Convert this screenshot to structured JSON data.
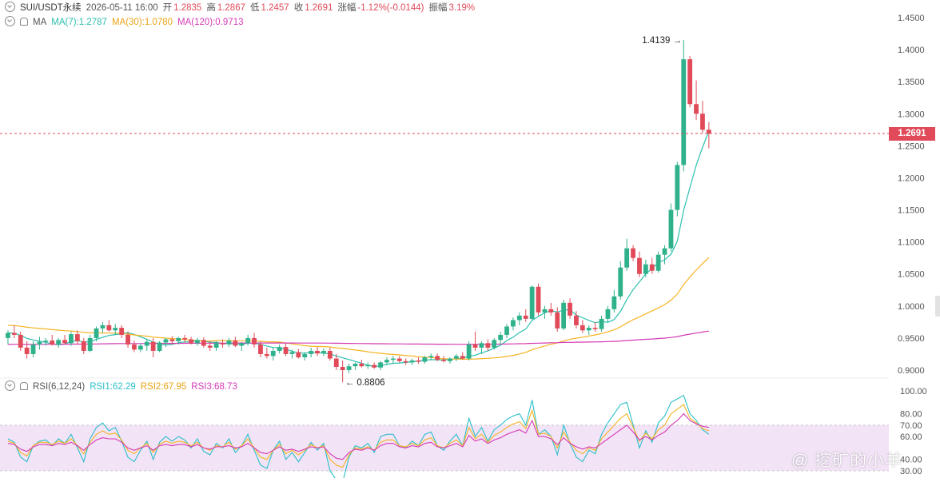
{
  "header": {
    "symbol": "SUI/USDT永续",
    "datetime": "2026-05-11 16:00",
    "open_label": "开",
    "open": "1.2835",
    "high_label": "高",
    "high": "1.2867",
    "low_label": "低",
    "low": "1.2457",
    "close_label": "收",
    "close": "1.2691",
    "change_label": "涨幅",
    "change": "-1.12%(-0.0144)",
    "amp_label": "振幅",
    "amp": "3.19%"
  },
  "ma_legend": {
    "name": "MA",
    "ma7": "MA(7):1.2787",
    "ma30": "MA(30):1.0780",
    "ma120": "MA(120):0.9713"
  },
  "rsi_legend": {
    "name": "RSI(6,12,24)",
    "rsi1": "RSI1:62.29",
    "rsi2": "RSI2:67.95",
    "rsi3": "RSI3:68.73"
  },
  "watermark": "@ 挖矿的小羊",
  "colors": {
    "up": "#2fb18b",
    "down": "#e04a59",
    "ma7": "#2bbfae",
    "ma30": "#f5b321",
    "ma120": "#d43ab4",
    "rsi1": "#2bbfc9",
    "rsi2": "#f5b321",
    "rsi3": "#d43ab4",
    "rsi_band": "#f3e3f7"
  },
  "chart_data": {
    "type": "candlestick",
    "price_axis": {
      "ticks": [
        "1.4500",
        "1.4000",
        "1.3500",
        "1.3000",
        "1.2500",
        "1.2000",
        "1.1500",
        "1.1000",
        "1.0500",
        "1.0000",
        "0.9500",
        "0.9000"
      ],
      "range": [
        0.875,
        1.46
      ]
    },
    "last_price": "1.2691",
    "annotations": {
      "high": "1.4139",
      "low": "0.8806"
    },
    "rsi_axis": {
      "ticks": [
        "100.00",
        "80.00",
        "70.00",
        "60.00",
        "40.00",
        "30.00"
      ],
      "range": [
        30,
        100
      ],
      "overbought": 70,
      "oversold": 30
    },
    "ohlc_notes": "approximate OHLC per bar, read from the chart",
    "ohlc": [
      [
        0.95,
        0.962,
        0.94,
        0.958
      ],
      [
        0.958,
        0.97,
        0.95,
        0.955
      ],
      [
        0.955,
        0.96,
        0.93,
        0.935
      ],
      [
        0.935,
        0.945,
        0.918,
        0.925
      ],
      [
        0.925,
        0.945,
        0.92,
        0.94
      ],
      [
        0.94,
        0.952,
        0.932,
        0.944
      ],
      [
        0.944,
        0.95,
        0.938,
        0.946
      ],
      [
        0.946,
        0.955,
        0.938,
        0.94
      ],
      [
        0.94,
        0.95,
        0.935,
        0.947
      ],
      [
        0.947,
        0.955,
        0.94,
        0.942
      ],
      [
        0.942,
        0.96,
        0.938,
        0.956
      ],
      [
        0.956,
        0.962,
        0.94,
        0.945
      ],
      [
        0.945,
        0.95,
        0.925,
        0.93
      ],
      [
        0.93,
        0.955,
        0.928,
        0.95
      ],
      [
        0.95,
        0.968,
        0.945,
        0.965
      ],
      [
        0.965,
        0.975,
        0.958,
        0.97
      ],
      [
        0.97,
        0.978,
        0.96,
        0.962
      ],
      [
        0.962,
        0.972,
        0.955,
        0.966
      ],
      [
        0.966,
        0.97,
        0.95,
        0.955
      ],
      [
        0.955,
        0.96,
        0.935,
        0.94
      ],
      [
        0.94,
        0.946,
        0.928,
        0.932
      ],
      [
        0.932,
        0.942,
        0.928,
        0.938
      ],
      [
        0.938,
        0.948,
        0.93,
        0.944
      ],
      [
        0.944,
        0.95,
        0.92,
        0.93
      ],
      [
        0.93,
        0.945,
        0.928,
        0.943
      ],
      [
        0.943,
        0.95,
        0.936,
        0.948
      ],
      [
        0.948,
        0.953,
        0.94,
        0.945
      ],
      [
        0.945,
        0.952,
        0.94,
        0.95
      ],
      [
        0.95,
        0.955,
        0.943,
        0.948
      ],
      [
        0.948,
        0.952,
        0.94,
        0.942
      ],
      [
        0.942,
        0.95,
        0.938,
        0.947
      ],
      [
        0.947,
        0.951,
        0.935,
        0.938
      ],
      [
        0.938,
        0.945,
        0.93,
        0.935
      ],
      [
        0.935,
        0.945,
        0.93,
        0.942
      ],
      [
        0.942,
        0.948,
        0.935,
        0.94
      ],
      [
        0.94,
        0.95,
        0.936,
        0.946
      ],
      [
        0.946,
        0.952,
        0.936,
        0.938
      ],
      [
        0.938,
        0.944,
        0.93,
        0.942
      ],
      [
        0.942,
        0.955,
        0.938,
        0.95
      ],
      [
        0.95,
        0.958,
        0.935,
        0.94
      ],
      [
        0.94,
        0.945,
        0.92,
        0.925
      ],
      [
        0.925,
        0.935,
        0.918,
        0.922
      ],
      [
        0.922,
        0.935,
        0.915,
        0.93
      ],
      [
        0.93,
        0.94,
        0.926,
        0.936
      ],
      [
        0.936,
        0.942,
        0.922,
        0.925
      ],
      [
        0.925,
        0.932,
        0.918,
        0.928
      ],
      [
        0.928,
        0.933,
        0.918,
        0.92
      ],
      [
        0.92,
        0.928,
        0.915,
        0.925
      ],
      [
        0.925,
        0.935,
        0.92,
        0.93
      ],
      [
        0.93,
        0.936,
        0.922,
        0.926
      ],
      [
        0.926,
        0.934,
        0.922,
        0.93
      ],
      [
        0.93,
        0.935,
        0.915,
        0.918
      ],
      [
        0.918,
        0.925,
        0.9,
        0.905
      ],
      [
        0.905,
        0.915,
        0.881,
        0.9
      ],
      [
        0.9,
        0.91,
        0.895,
        0.906
      ],
      [
        0.906,
        0.912,
        0.9,
        0.91
      ],
      [
        0.91,
        0.916,
        0.904,
        0.906
      ],
      [
        0.906,
        0.912,
        0.902,
        0.908
      ],
      [
        0.908,
        0.912,
        0.902,
        0.904
      ],
      [
        0.904,
        0.914,
        0.9,
        0.912
      ],
      [
        0.912,
        0.92,
        0.908,
        0.916
      ],
      [
        0.916,
        0.922,
        0.91,
        0.918
      ],
      [
        0.918,
        0.922,
        0.912,
        0.914
      ],
      [
        0.914,
        0.918,
        0.908,
        0.912
      ],
      [
        0.912,
        0.918,
        0.908,
        0.915
      ],
      [
        0.915,
        0.92,
        0.91,
        0.913
      ],
      [
        0.913,
        0.922,
        0.91,
        0.92
      ],
      [
        0.92,
        0.926,
        0.916,
        0.922
      ],
      [
        0.922,
        0.926,
        0.914,
        0.916
      ],
      [
        0.916,
        0.922,
        0.912,
        0.914
      ],
      [
        0.914,
        0.92,
        0.91,
        0.918
      ],
      [
        0.918,
        0.925,
        0.914,
        0.922
      ],
      [
        0.922,
        0.928,
        0.916,
        0.918
      ],
      [
        0.918,
        0.945,
        0.915,
        0.94
      ],
      [
        0.94,
        0.96,
        0.93,
        0.935
      ],
      [
        0.935,
        0.945,
        0.925,
        0.942
      ],
      [
        0.942,
        0.948,
        0.93,
        0.935
      ],
      [
        0.935,
        0.95,
        0.932,
        0.947
      ],
      [
        0.947,
        0.96,
        0.94,
        0.955
      ],
      [
        0.955,
        0.972,
        0.95,
        0.968
      ],
      [
        0.968,
        0.982,
        0.962,
        0.978
      ],
      [
        0.978,
        0.99,
        0.97,
        0.985
      ],
      [
        0.985,
        0.995,
        0.975,
        0.98
      ],
      [
        0.98,
        1.032,
        0.978,
        1.03
      ],
      [
        1.03,
        1.035,
        0.985,
        0.99
      ],
      [
        0.99,
        1.0,
        0.98,
        0.995
      ],
      [
        0.995,
        1.005,
        0.985,
        0.99
      ],
      [
        0.99,
        0.998,
        0.96,
        0.965
      ],
      [
        0.965,
        1.01,
        0.962,
        1.005
      ],
      [
        1.005,
        1.012,
        0.98,
        0.985
      ],
      [
        0.985,
        0.992,
        0.965,
        0.97
      ],
      [
        0.97,
        0.978,
        0.958,
        0.962
      ],
      [
        0.962,
        0.97,
        0.955,
        0.966
      ],
      [
        0.966,
        0.975,
        0.96,
        0.964
      ],
      [
        0.964,
        0.985,
        0.96,
        0.98
      ],
      [
        0.98,
        1.0,
        0.975,
        0.995
      ],
      [
        0.995,
        1.025,
        0.99,
        1.015
      ],
      [
        1.015,
        1.07,
        1.01,
        1.06
      ],
      [
        1.06,
        1.105,
        1.055,
        1.09
      ],
      [
        1.09,
        1.095,
        1.07,
        1.075
      ],
      [
        1.075,
        1.085,
        1.045,
        1.05
      ],
      [
        1.05,
        1.072,
        1.045,
        1.065
      ],
      [
        1.065,
        1.075,
        1.05,
        1.055
      ],
      [
        1.055,
        1.085,
        1.052,
        1.08
      ],
      [
        1.08,
        1.095,
        1.065,
        1.09
      ],
      [
        1.09,
        1.16,
        1.085,
        1.15
      ],
      [
        1.15,
        1.225,
        1.14,
        1.22
      ],
      [
        1.22,
        1.415,
        1.21,
        1.385
      ],
      [
        1.385,
        1.39,
        1.31,
        1.315
      ],
      [
        1.315,
        1.352,
        1.29,
        1.3
      ],
      [
        1.3,
        1.32,
        1.27,
        1.275
      ],
      [
        1.275,
        1.287,
        1.246,
        1.269
      ]
    ],
    "rsi1": [
      58,
      55,
      42,
      38,
      52,
      56,
      57,
      52,
      58,
      54,
      62,
      50,
      38,
      58,
      68,
      72,
      65,
      68,
      56,
      42,
      38,
      48,
      56,
      40,
      55,
      60,
      56,
      60,
      57,
      50,
      58,
      47,
      44,
      54,
      50,
      58,
      46,
      52,
      62,
      48,
      35,
      32,
      48,
      56,
      40,
      46,
      38,
      46,
      55,
      48,
      54,
      30,
      22,
      20,
      42,
      52,
      50,
      54,
      46,
      60,
      62,
      62,
      52,
      50,
      56,
      52,
      62,
      64,
      52,
      48,
      56,
      62,
      52,
      76,
      60,
      68,
      56,
      66,
      70,
      75,
      78,
      80,
      70,
      92,
      62,
      66,
      60,
      44,
      70,
      54,
      42,
      38,
      48,
      45,
      62,
      72,
      80,
      88,
      90,
      70,
      50,
      65,
      55,
      72,
      78,
      90,
      93,
      96,
      80,
      74,
      66,
      62
    ],
    "rsi2": [
      56,
      54,
      46,
      43,
      52,
      55,
      55,
      53,
      56,
      54,
      58,
      52,
      45,
      55,
      62,
      65,
      62,
      63,
      57,
      48,
      45,
      50,
      54,
      46,
      53,
      56,
      54,
      56,
      55,
      52,
      55,
      50,
      48,
      52,
      51,
      55,
      49,
      52,
      58,
      50,
      42,
      40,
      48,
      53,
      45,
      48,
      44,
      48,
      53,
      50,
      52,
      40,
      35,
      33,
      44,
      50,
      49,
      51,
      48,
      55,
      57,
      57,
      52,
      51,
      54,
      52,
      57,
      59,
      52,
      50,
      54,
      57,
      52,
      68,
      58,
      62,
      55,
      61,
      64,
      68,
      71,
      73,
      67,
      83,
      62,
      63,
      60,
      50,
      64,
      55,
      48,
      45,
      50,
      48,
      58,
      64,
      70,
      76,
      80,
      68,
      56,
      63,
      58,
      66,
      70,
      80,
      84,
      88,
      76,
      72,
      67,
      65
    ],
    "rsi3": [
      54,
      53,
      49,
      47,
      51,
      53,
      53,
      52,
      54,
      53,
      55,
      52,
      48,
      53,
      57,
      59,
      58,
      58,
      55,
      50,
      48,
      50,
      52,
      48,
      52,
      53,
      52,
      53,
      53,
      51,
      53,
      50,
      49,
      51,
      51,
      52,
      50,
      51,
      54,
      50,
      46,
      45,
      48,
      51,
      48,
      49,
      47,
      49,
      51,
      50,
      51,
      45,
      41,
      40,
      46,
      49,
      48,
      50,
      48,
      52,
      54,
      54,
      51,
      50,
      52,
      51,
      54,
      55,
      51,
      50,
      52,
      54,
      51,
      61,
      56,
      58,
      54,
      57,
      59,
      62,
      64,
      66,
      63,
      74,
      60,
      60,
      58,
      53,
      59,
      54,
      51,
      49,
      51,
      50,
      54,
      58,
      62,
      66,
      70,
      64,
      57,
      60,
      57,
      61,
      64,
      70,
      74,
      80,
      74,
      71,
      69,
      68
    ]
  }
}
